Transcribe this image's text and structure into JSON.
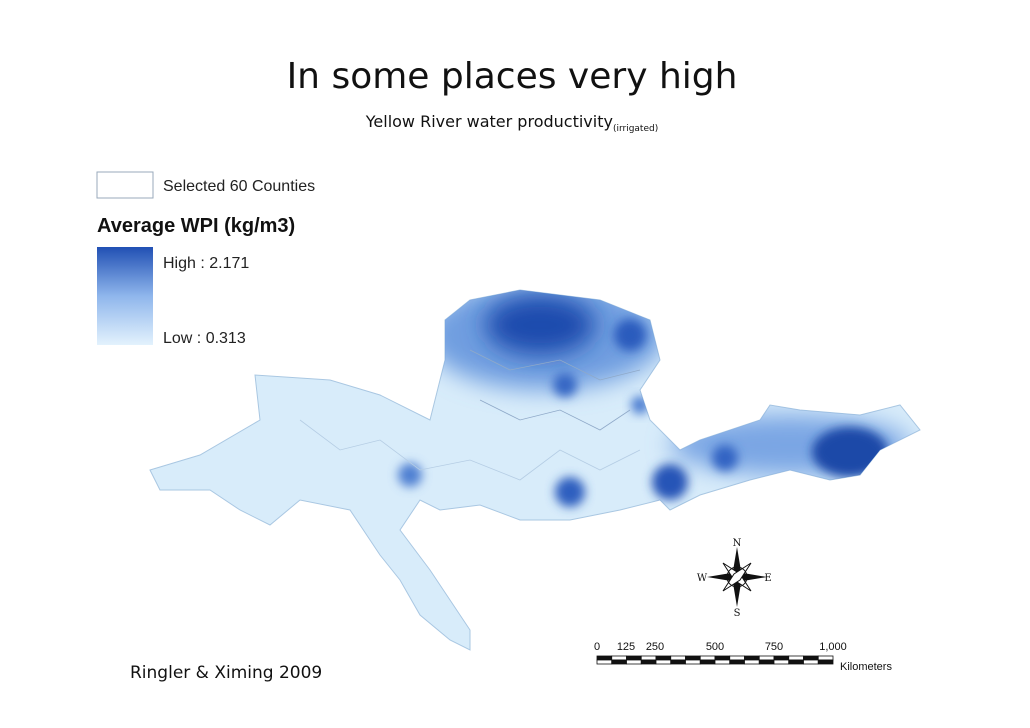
{
  "title": "In some places very high",
  "subtitle": {
    "text": "Yellow River water productivity",
    "subscript": "(irrigated)"
  },
  "legend": {
    "selected": "Selected 60 Counties",
    "title": "Average WPI (kg/m3)",
    "high": "High : 2.171",
    "low": "Low : 0.313"
  },
  "compass": {
    "n": "N",
    "s": "S",
    "e": "E",
    "w": "W"
  },
  "scale_bar": {
    "labels": [
      "0",
      "125",
      "250",
      "500",
      "750",
      "1,000"
    ],
    "unit": "Kilometers"
  },
  "citation": "Ringler & Ximing 2009"
}
